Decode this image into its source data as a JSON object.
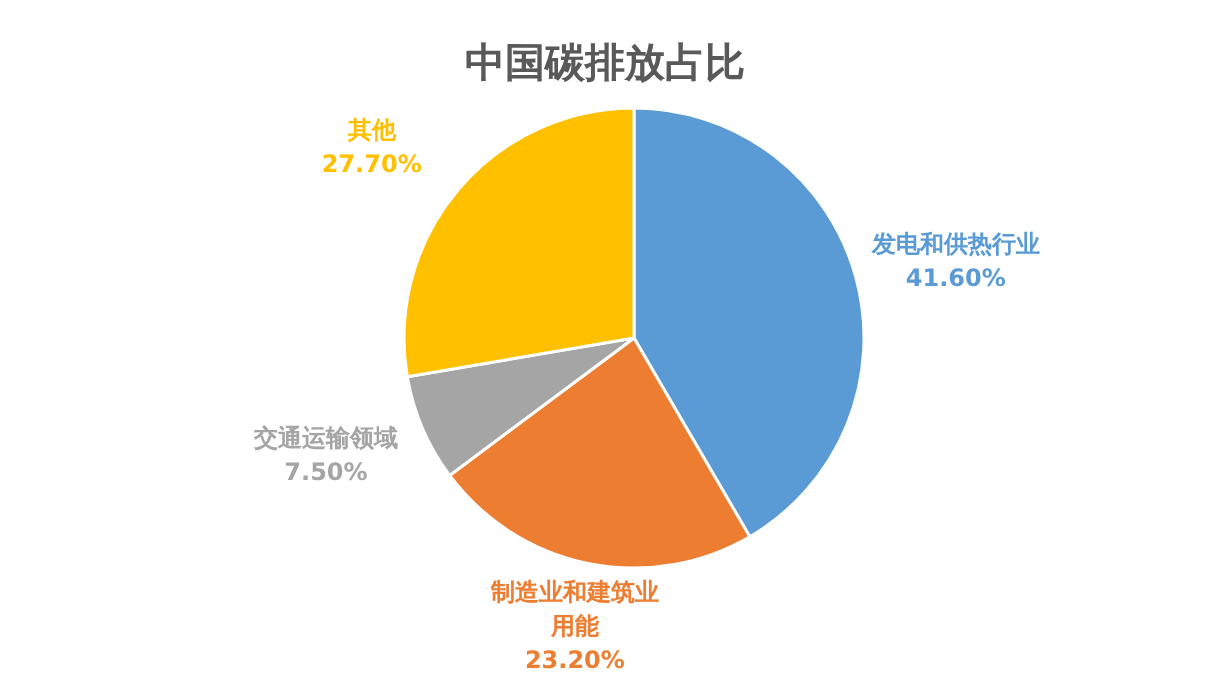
{
  "chart_data": {
    "type": "pie",
    "title": "中国碳排放占比",
    "categories": [
      "发电和供热行业",
      "制造业和建筑业用能",
      "交通运输领域",
      "其他"
    ],
    "values": [
      41.6,
      23.2,
      7.5,
      27.7
    ],
    "colors": [
      "#5b9bd5",
      "#ed7d31",
      "#a5a5a5",
      "#ffc000"
    ],
    "value_labels": [
      "41.60%",
      "23.20%",
      "7.50%",
      "27.70%"
    ]
  }
}
